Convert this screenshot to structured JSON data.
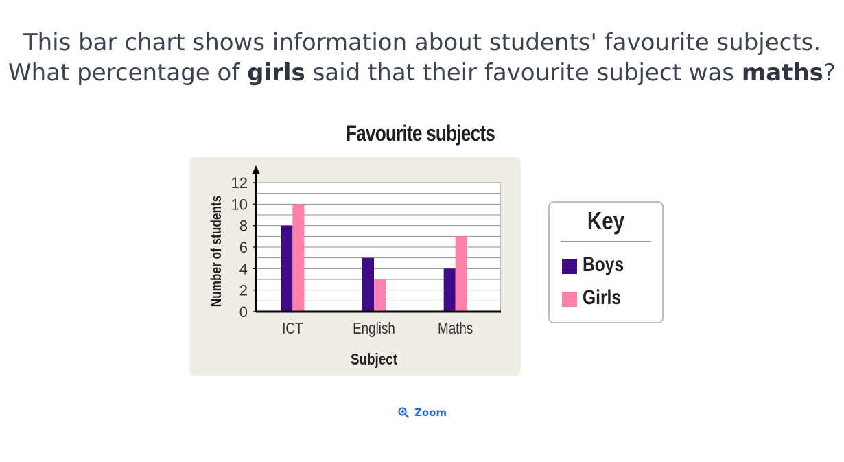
{
  "question": {
    "line1": "This bar chart shows information about students' favourite subjects.",
    "line2_part1": "What percentage of ",
    "line2_bold1": "girls",
    "line2_part2": " said that their favourite subject was ",
    "line2_bold2": "maths",
    "line2_part3": "?"
  },
  "chart_data": {
    "type": "bar",
    "title": "Favourite subjects",
    "xlabel": "Subject",
    "ylabel": "Number of students",
    "categories": [
      "ICT",
      "English",
      "Maths"
    ],
    "series": [
      {
        "name": "Boys",
        "values": [
          8,
          5,
          4
        ],
        "color": "#3f0a86"
      },
      {
        "name": "Girls",
        "values": [
          10,
          3,
          7
        ],
        "color": "#ff7fad"
      }
    ],
    "ylim": [
      0,
      12
    ],
    "yticks": [
      0,
      2,
      4,
      6,
      8,
      10,
      12
    ],
    "grid": true,
    "legend_position": "right"
  },
  "key": {
    "title": "Key",
    "items": [
      {
        "label": "Boys",
        "color": "#3f0a86"
      },
      {
        "label": "Girls",
        "color": "#ff7fad"
      }
    ]
  },
  "zoom": {
    "label": "Zoom",
    "icon": "zoom-in-icon"
  }
}
